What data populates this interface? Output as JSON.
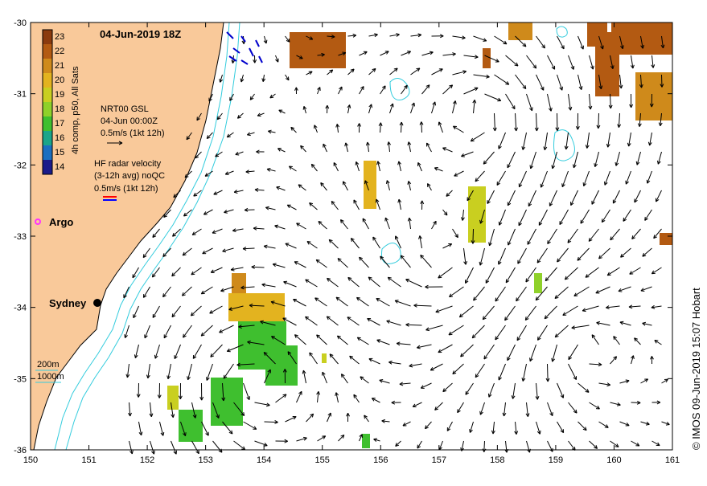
{
  "title": "04-Jun-2019 18Z",
  "colorbar": {
    "label": "4h comp, p50, All Sats",
    "ticks": [
      "23",
      "22",
      "21",
      "20",
      "19",
      "18",
      "17",
      "16",
      "15",
      "14"
    ],
    "colors": [
      "#8b3a0e",
      "#b35a12",
      "#cf8a1b",
      "#e3b31f",
      "#c9cf20",
      "#8fd12a",
      "#3fbf2f",
      "#1aa58a",
      "#1a6fc0",
      "#1a1a8a"
    ]
  },
  "gsl_legend": {
    "line1": "NRT00 GSL",
    "line2": "04-Jun 00:00Z",
    "line3": "0.5m/s (1kt 12h)"
  },
  "hf_legend": {
    "line1": "HF radar velocity",
    "line2": "(3-12h avg) noQC",
    "line3": "0.5m/s (1kt 12h)"
  },
  "argo_label": "Argo",
  "city_label": "Sydney",
  "depth_legend": {
    "contour1": "200m",
    "contour2": "1000m"
  },
  "credit": "© IMOS 09-Jun-2019 15:07 Hobart",
  "axes": {
    "x_ticks": [
      "150",
      "151",
      "152",
      "153",
      "154",
      "155",
      "156",
      "157",
      "158",
      "159",
      "160",
      "161"
    ],
    "y_ticks": [
      "-30",
      "-31",
      "-32",
      "-33",
      "-34",
      "-35",
      "-36"
    ],
    "xlim": [
      150,
      161
    ],
    "ylim": [
      -36,
      -30
    ]
  },
  "colors": {
    "land": "#f9c99a",
    "coast": "#000000",
    "isobath": "#33ccdd",
    "argo": "#ff33ff"
  }
}
